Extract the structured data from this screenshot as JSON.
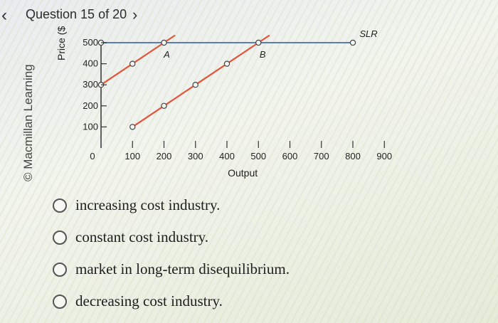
{
  "header": {
    "back_icon": "chevron-left-icon",
    "title": "Question 15 of 20",
    "forward_icon": "chevron-right-icon"
  },
  "watermark": "© Macmillan Learning",
  "chart_data": {
    "type": "line",
    "title": "",
    "xlabel": "Output",
    "ylabel": "Price ($",
    "xlim": [
      0,
      900
    ],
    "ylim": [
      0,
      500
    ],
    "x_ticks": [
      0,
      100,
      200,
      300,
      400,
      500,
      600,
      700,
      800,
      900
    ],
    "y_ticks": [
      100,
      200,
      300,
      400,
      500
    ],
    "series": [
      {
        "name": "SLR",
        "color": "#5b7bb6",
        "points": [
          [
            0,
            500
          ],
          [
            800,
            500
          ]
        ]
      },
      {
        "name": "",
        "color": "#e2553a",
        "points": [
          [
            100,
            100
          ],
          [
            200,
            200
          ],
          [
            300,
            300
          ],
          [
            400,
            400
          ],
          [
            500,
            500
          ]
        ]
      },
      {
        "name": "",
        "color": "#e2553a",
        "points": [
          [
            0,
            300
          ],
          [
            100,
            400
          ],
          [
            200,
            500
          ]
        ]
      }
    ],
    "annotations": [
      {
        "label": "A",
        "x": 200,
        "y": 500
      },
      {
        "label": "B",
        "x": 500,
        "y": 500
      },
      {
        "label": "SLR",
        "x": 800,
        "y": 500
      }
    ]
  },
  "options": [
    {
      "label": "increasing cost industry."
    },
    {
      "label": "constant cost industry."
    },
    {
      "label": "market in long-term disequilibrium."
    },
    {
      "label": "decreasing cost industry."
    }
  ]
}
